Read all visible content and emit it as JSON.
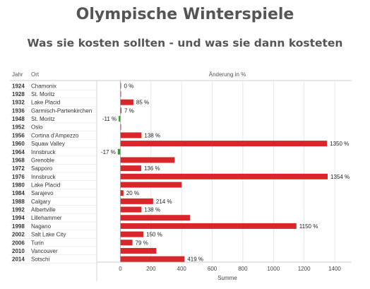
{
  "title": "Olympische Winterspiele",
  "subtitle": "Was sie kosten sollten - und was sie dann kosteten",
  "colors": {
    "positive": "#d9262b",
    "negative": "#2ea02c",
    "grid": "#dddddd"
  },
  "chart_data": {
    "type": "bar",
    "orientation": "horizontal",
    "column_headers": {
      "year": "Jahr",
      "city": "Ort",
      "value": "Änderung in %"
    },
    "xlabel": "Summe",
    "xlim": [
      -30,
      1480
    ],
    "xticks": [
      0,
      200,
      400,
      600,
      800,
      1000,
      1200,
      1400
    ],
    "grid": true,
    "rows": [
      {
        "year": "1924",
        "city": "Chamonix",
        "value": 0,
        "label": "0 %"
      },
      {
        "year": "1928",
        "city": "St. Moritz",
        "value": 0,
        "label": ""
      },
      {
        "year": "1932",
        "city": "Lake Placid",
        "value": 85,
        "label": "85 %"
      },
      {
        "year": "1936",
        "city": "Garmisch-Partenkirchen",
        "value": 7,
        "label": "7 %"
      },
      {
        "year": "1948",
        "city": "St. Moritz",
        "value": -11,
        "label": "-11 %"
      },
      {
        "year": "1952",
        "city": "Oslo",
        "value": 0,
        "label": ""
      },
      {
        "year": "1956",
        "city": "Cortina d'Ampezzo",
        "value": 138,
        "label": "138 %"
      },
      {
        "year": "1960",
        "city": "Squaw Valley",
        "value": 1350,
        "label": "1350 %"
      },
      {
        "year": "1964",
        "city": "Innsbruck",
        "value": -17,
        "label": "-17 %"
      },
      {
        "year": "1968",
        "city": "Grenoble",
        "value": 355,
        "label": ""
      },
      {
        "year": "1972",
        "city": "Sapporo",
        "value": 136,
        "label": "136 %"
      },
      {
        "year": "1976",
        "city": "Innsbruck",
        "value": 1354,
        "label": "1354 %"
      },
      {
        "year": "1980",
        "city": "Lake Placid",
        "value": 400,
        "label": ""
      },
      {
        "year": "1984",
        "city": "Sarajevo",
        "value": 20,
        "label": "20 %"
      },
      {
        "year": "1988",
        "city": "Calgary",
        "value": 214,
        "label": "214 %"
      },
      {
        "year": "1992",
        "city": "Albertville",
        "value": 138,
        "label": "138 %"
      },
      {
        "year": "1994",
        "city": "Lillehammer",
        "value": 455,
        "label": ""
      },
      {
        "year": "1998",
        "city": "Nagano",
        "value": 1150,
        "label": "1150 %"
      },
      {
        "year": "2002",
        "city": "Salt Lake City",
        "value": 150,
        "label": "150 %"
      },
      {
        "year": "2006",
        "city": "Turin",
        "value": 79,
        "label": "79 %"
      },
      {
        "year": "2010",
        "city": "Vancouver",
        "value": 235,
        "label": ""
      },
      {
        "year": "2014",
        "city": "Sotschi",
        "value": 419,
        "label": "419 %"
      }
    ]
  }
}
